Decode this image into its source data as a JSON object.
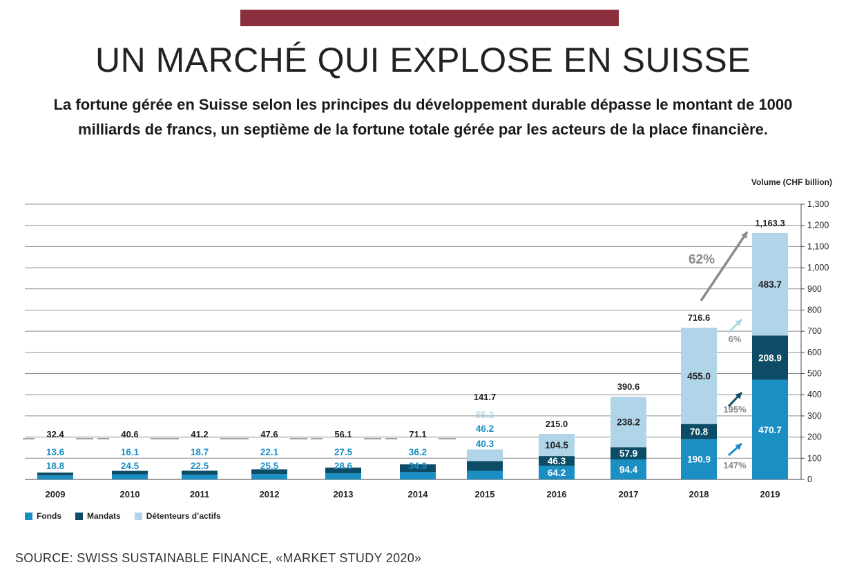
{
  "header": {
    "bar_color": "#8b2e3d",
    "title": "UN MARCHÉ QUI EXPLOSE EN SUISSE",
    "subtitle": "La fortune gérée en Suisse selon les principes du développement durable dépasse le montant de 1000 milliards de francs, un septième de la fortune totale gérée par les acteurs de la place financière."
  },
  "chart_data": {
    "type": "bar",
    "stacked": true,
    "ylabel": "Volume (CHF billion)",
    "ylim": [
      0,
      1300
    ],
    "yticks": [
      0,
      100,
      200,
      300,
      400,
      500,
      600,
      700,
      800,
      900,
      1000,
      1100,
      1200,
      1300
    ],
    "ytick_labels": [
      "0",
      "100",
      "200",
      "300",
      "400",
      "500",
      "600",
      "700",
      "800",
      "900",
      "1,000",
      "1,100",
      "1,200",
      "1,300"
    ],
    "grid": true,
    "axis_side": "right",
    "categories": [
      "2009",
      "2010",
      "2011",
      "2012",
      "2013",
      "2014",
      "2015",
      "2016",
      "2017",
      "2018",
      "2019"
    ],
    "series": [
      {
        "name": "Fonds",
        "color": "#1b8fc4",
        "values": [
          18.8,
          24.5,
          22.5,
          25.5,
          28.6,
          34.9,
          40.3,
          64.2,
          94.4,
          190.9,
          470.7
        ],
        "labels": [
          "18.8",
          "24.5",
          "22.5",
          "25.5",
          "28.6",
          "34.9",
          "40.3",
          "64.2",
          "94.4",
          "190.9",
          "470.7"
        ]
      },
      {
        "name": "Mandats",
        "color": "#0d4c66",
        "values": [
          13.6,
          16.1,
          18.7,
          22.1,
          27.5,
          36.2,
          46.2,
          46.3,
          57.9,
          70.8,
          208.9
        ],
        "labels": [
          "13.6",
          "16.1",
          "18.7",
          "22.1",
          "27.5",
          "36.2",
          "46.2",
          "46.3",
          "57.9",
          "70.8",
          "208.9"
        ]
      },
      {
        "name": "Détenteurs d’actifs",
        "color": "#b0d4e8",
        "values": [
          0,
          0,
          0,
          0,
          0,
          0,
          55.2,
          104.5,
          238.2,
          455.0,
          483.7
        ],
        "labels": [
          "",
          "",
          "",
          "",
          "",
          "",
          "55.2",
          "104.5",
          "238.2",
          "455.0",
          "483.7"
        ]
      }
    ],
    "totals": [
      "32.4",
      "40.6",
      "41.2",
      "47.6",
      "56.1",
      "71.1",
      "141.7",
      "215.0",
      "390.6",
      "716.6",
      "1,163.3"
    ],
    "total_values": [
      32.4,
      40.6,
      41.2,
      47.6,
      56.1,
      71.1,
      141.7,
      215.0,
      390.6,
      716.6,
      1163.3
    ],
    "annotations": [
      {
        "text": "62%",
        "color": "#8a8a8a"
      },
      {
        "text": "6%",
        "color": "#8a8a8a"
      },
      {
        "text": "195%",
        "color": "#8a8a8a"
      },
      {
        "text": "147%",
        "color": "#8a8a8a"
      }
    ]
  },
  "legend": [
    {
      "label": "Fonds",
      "color": "#1b8fc4"
    },
    {
      "label": "Mandats",
      "color": "#0d4c66"
    },
    {
      "label": "Détenteurs d’actifs",
      "color": "#b0d4e8"
    }
  ],
  "source": "SOURCE: SWISS SUSTAINABLE FINANCE, «MARKET STUDY 2020»"
}
